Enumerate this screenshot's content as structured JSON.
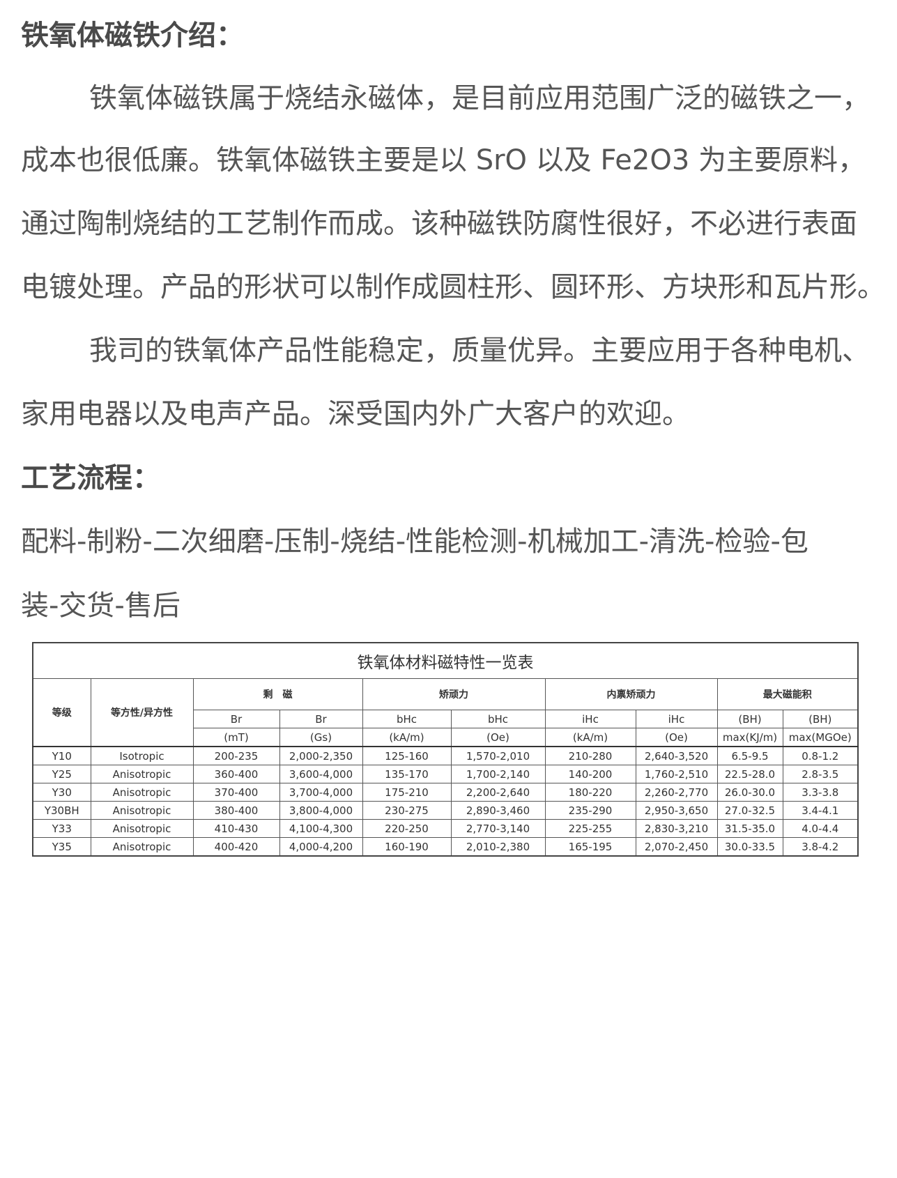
{
  "intro": {
    "heading": "铁氧体磁铁介绍：",
    "lines": [
      "铁氧体磁铁属于烧结永磁体，是目前应用范围广泛的磁铁之一，",
      "成本也很低廉。铁氧体磁铁主要是以 SrO 以及 Fe2O3 为主要原料，",
      "通过陶制烧结的工艺制作而成。该种磁铁防腐性很好，不必进行表面",
      "电镀处理。产品的形状可以制作成圆柱形、圆环形、方块形和瓦片形。",
      "我司的铁氧体产品性能稳定，质量优异。主要应用于各种电机、",
      "家用电器以及电声产品。深受国内外广大客户的欢迎。"
    ]
  },
  "process": {
    "heading": "工艺流程：",
    "lines": [
      "配料-制粉-二次细磨-压制-烧结-性能检测-机械加工-清洗-检验-包",
      "装-交货-售后"
    ]
  },
  "table": {
    "title": "铁氧体材料磁特性一览表",
    "col_grade": "等级",
    "col_type": "等方性/异方性",
    "groups": [
      "剩　磁",
      "矫顽力",
      "内禀矫顽力",
      "最大磁能积"
    ],
    "sub1": [
      "Br",
      "Br",
      "bHc",
      "bHc",
      "iHc",
      "iHc",
      "(BH)",
      "(BH)"
    ],
    "sub2": [
      "(mT)",
      "(Gs)",
      "(kA/m)",
      "(Oe)",
      "(kA/m)",
      "(Oe)",
      "max(KJ/m)",
      "max(MGOe)"
    ],
    "rows": [
      [
        "Y10",
        "Isotropic",
        "200-235",
        "2,000-2,350",
        "125-160",
        "1,570-2,010",
        "210-280",
        "2,640-3,520",
        "6.5-9.5",
        "0.8-1.2"
      ],
      [
        "Y25",
        "Anisotropic",
        "360-400",
        "3,600-4,000",
        "135-170",
        "1,700-2,140",
        "140-200",
        "1,760-2,510",
        "22.5-28.0",
        "2.8-3.5"
      ],
      [
        "Y30",
        "Anisotropic",
        "370-400",
        "3,700-4,000",
        "175-210",
        "2,200-2,640",
        "180-220",
        "2,260-2,770",
        "26.0-30.0",
        "3.3-3.8"
      ],
      [
        "Y30BH",
        "Anisotropic",
        "380-400",
        "3,800-4,000",
        "230-275",
        "2,890-3,460",
        "235-290",
        "2,950-3,650",
        "27.0-32.5",
        "3.4-4.1"
      ],
      [
        "Y33",
        "Anisotropic",
        "410-430",
        "4,100-4,300",
        "220-250",
        "2,770-3,140",
        "225-255",
        "2,830-3,210",
        "31.5-35.0",
        "4.0-4.4"
      ],
      [
        "Y35",
        "Anisotropic",
        "400-420",
        "4,000-4,200",
        "160-190",
        "2,010-2,380",
        "165-195",
        "2,070-2,450",
        "30.0-33.5",
        "3.8-4.2"
      ]
    ]
  }
}
